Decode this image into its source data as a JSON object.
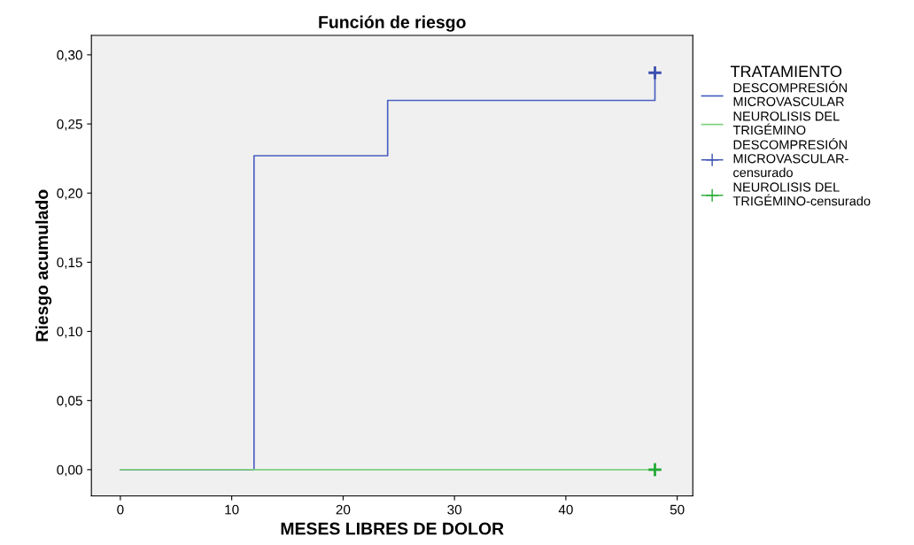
{
  "chart_data": {
    "type": "step",
    "title": "Función de riesgo",
    "xlabel": "MESES LIBRES DE DOLOR",
    "ylabel": "Riesgo acumulado",
    "legend_title": "TRATAMIENTO",
    "legend": "right",
    "grid": false,
    "xlim": [
      -2.6,
      51.4
    ],
    "xticks": [
      0,
      10,
      20,
      30,
      40,
      50
    ],
    "ylim": [
      -0.019,
      0.314
    ],
    "yticks": [
      {
        "value": 0,
        "label": "0,00"
      },
      {
        "value": 0.05,
        "label": "0,05"
      },
      {
        "value": 0.1,
        "label": "0,10"
      },
      {
        "value": 0.15,
        "label": "0,15"
      },
      {
        "value": 0.2,
        "label": "0,20"
      },
      {
        "value": 0.25,
        "label": "0,25"
      },
      {
        "value": 0.3,
        "label": "0,30"
      }
    ],
    "series": [
      {
        "name": "DESCOMPRESIÓN\nMICROVASCULAR",
        "color": "#4a5fc1",
        "x": [
          0,
          12,
          24,
          48
        ],
        "values": [
          0,
          0.227,
          0.267,
          0.287
        ]
      },
      {
        "name": "NEUROLISIS DEL\nTRIGÉMINO",
        "color": "#7fd07f",
        "x": [
          0,
          48
        ],
        "values": [
          0,
          0
        ]
      },
      {
        "name": "DESCOMPRESIÓN\nMICROVASCULAR-\ncensurado",
        "type": "scatter",
        "marker": "cross",
        "color": "#3a4fb0",
        "x": [
          48
        ],
        "values": [
          0.287
        ]
      },
      {
        "name": "NEUROLISIS DEL\nTRIGÉMINO-censurado",
        "type": "scatter",
        "marker": "cross",
        "color": "#22aa33",
        "x": [
          48
        ],
        "values": [
          0
        ]
      }
    ]
  }
}
